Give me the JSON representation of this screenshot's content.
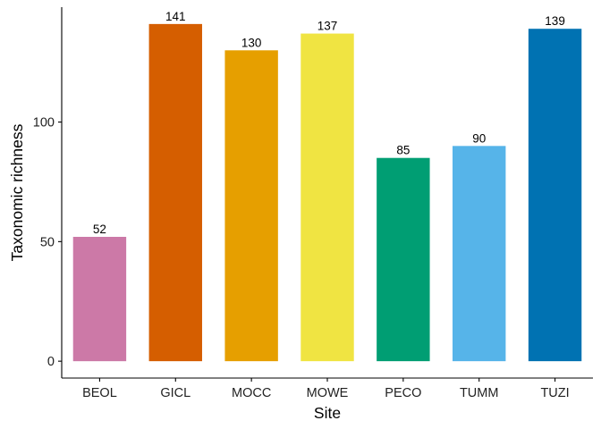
{
  "chart_data": {
    "type": "bar",
    "categories": [
      "BEOL",
      "GICL",
      "MOCC",
      "MOWE",
      "PECO",
      "TUMM",
      "TUZI"
    ],
    "values": [
      52,
      141,
      130,
      137,
      85,
      90,
      139
    ],
    "data_labels": [
      "52",
      "141",
      "130",
      "137",
      "85",
      "90",
      "139"
    ],
    "colors": [
      "#CC79A7",
      "#D55E00",
      "#E69F00",
      "#F0E442",
      "#009E73",
      "#56B4E9",
      "#0072B2"
    ],
    "xlabel": "Site",
    "ylabel": "Taxonomic richness",
    "yticks": [
      0,
      50,
      100
    ],
    "ytick_labels": [
      "0",
      "50",
      "100"
    ],
    "ylim": [
      -7.05,
      148.05
    ],
    "grid": false,
    "legend": "none"
  }
}
